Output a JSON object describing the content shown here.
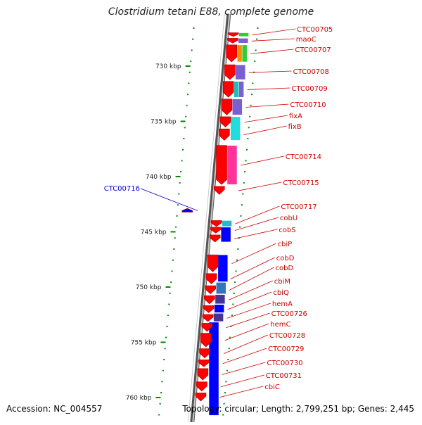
{
  "title": "Clostridium tetani E88, complete genome",
  "accession": "Accession: NC_004557",
  "topology": "Topology: circular; Length: 2,799,251 bp; Genes: 2,445",
  "colors": {
    "forward_gene": "#ff0000",
    "reverse_gene": "#0000ff",
    "gene_label": "#cc0000",
    "reverse_label": "#0000cc",
    "tick": "#008800",
    "backbone": "#777777"
  },
  "scale_ticks": [
    {
      "kbp": 730,
      "label": "730 kbp"
    },
    {
      "kbp": 735,
      "label": "735 kbp"
    },
    {
      "kbp": 740,
      "label": "740 kbp"
    },
    {
      "kbp": 745,
      "label": "745 kbp"
    },
    {
      "kbp": 750,
      "label": "750 kbp"
    },
    {
      "kbp": 755,
      "label": "755 kbp"
    },
    {
      "kbp": 760,
      "label": "760 kbp"
    }
  ],
  "genes_forward": [
    {
      "name": "CTC00705",
      "start": 727.3,
      "end": 727.7
    },
    {
      "name": "maoC",
      "start": 727.8,
      "end": 728.3
    },
    {
      "name": "CTC00707",
      "start": 728.4,
      "end": 730.0
    },
    {
      "name": "CTC00708",
      "start": 730.2,
      "end": 731.6
    },
    {
      "name": "CTC00709",
      "start": 731.7,
      "end": 733.2
    },
    {
      "name": "CTC00710",
      "start": 733.3,
      "end": 734.8
    },
    {
      "name": "fixA",
      "start": 734.9,
      "end": 735.9
    },
    {
      "name": "fixB",
      "start": 736.0,
      "end": 737.1
    },
    {
      "name": "CTC00714",
      "start": 737.5,
      "end": 741.1
    },
    {
      "name": "CTC00715",
      "start": 741.2,
      "end": 742.0
    },
    {
      "name": "CTC00717",
      "start": 744.3,
      "end": 744.9
    },
    {
      "name": "cobU",
      "start": 744.9,
      "end": 745.5
    },
    {
      "name": "cobS",
      "start": 745.6,
      "end": 746.3
    },
    {
      "name": "cbiP",
      "start": 747.4,
      "end": 749.0
    },
    {
      "name": "cobD",
      "start": 749.1,
      "end": 750.1
    },
    {
      "name": "cobD",
      "start": 750.2,
      "end": 751.0
    },
    {
      "name": "cbiM",
      "start": 751.1,
      "end": 751.9
    },
    {
      "name": "cbiQ",
      "start": 752.0,
      "end": 752.7
    },
    {
      "name": "hemA",
      "start": 752.8,
      "end": 753.5
    },
    {
      "name": "CTC00726",
      "start": 753.6,
      "end": 754.4
    },
    {
      "name": "hemC",
      "start": 754.5,
      "end": 755.8
    },
    {
      "name": "CTC00728",
      "start": 755.9,
      "end": 756.8
    },
    {
      "name": "CTC00729",
      "start": 756.9,
      "end": 757.6
    },
    {
      "name": "CTC00730",
      "start": 757.7,
      "end": 758.8
    },
    {
      "name": "CTC00731",
      "start": 758.9,
      "end": 759.8
    },
    {
      "name": "cbiC",
      "start": 759.9,
      "end": 760.7
    }
  ],
  "genes_reverse": [
    {
      "name": "CTC00716",
      "start": 743.2,
      "end": 743.6
    }
  ],
  "feature_blocks": [
    {
      "start": 727.3,
      "end": 727.7,
      "color": "#33cc33"
    },
    {
      "start": 727.8,
      "end": 728.3,
      "color": "#7a5fd0"
    },
    {
      "start": 728.4,
      "end": 730.0,
      "color": "#ff8c00"
    },
    {
      "start": 728.4,
      "end": 730.0,
      "color": "#33cc33"
    },
    {
      "start": 730.2,
      "end": 731.6,
      "color": "#7a5fd0"
    },
    {
      "start": 731.7,
      "end": 733.2,
      "color": "#22bbbb"
    },
    {
      "start": 731.7,
      "end": 733.2,
      "color": "#7a5fd0"
    },
    {
      "start": 733.3,
      "end": 734.8,
      "color": "#7a5fd0"
    },
    {
      "start": 734.9,
      "end": 737.1,
      "color": "#22dddd"
    },
    {
      "start": 737.5,
      "end": 741.1,
      "color": "#ff3399"
    },
    {
      "start": 744.3,
      "end": 744.9,
      "color": "#22bbcc"
    },
    {
      "start": 744.9,
      "end": 746.3,
      "color": "#0000ff"
    },
    {
      "start": 747.4,
      "end": 749.9,
      "color": "#0000ff"
    },
    {
      "start": 749.9,
      "end": 751.0,
      "color": "#3377bb"
    },
    {
      "start": 751.0,
      "end": 751.9,
      "color": "#443399"
    },
    {
      "start": 751.9,
      "end": 752.7,
      "color": "#0000ff"
    },
    {
      "start": 752.7,
      "end": 753.5,
      "color": "#443399"
    },
    {
      "start": 753.5,
      "end": 762.0,
      "color": "#0000ff"
    }
  ]
}
